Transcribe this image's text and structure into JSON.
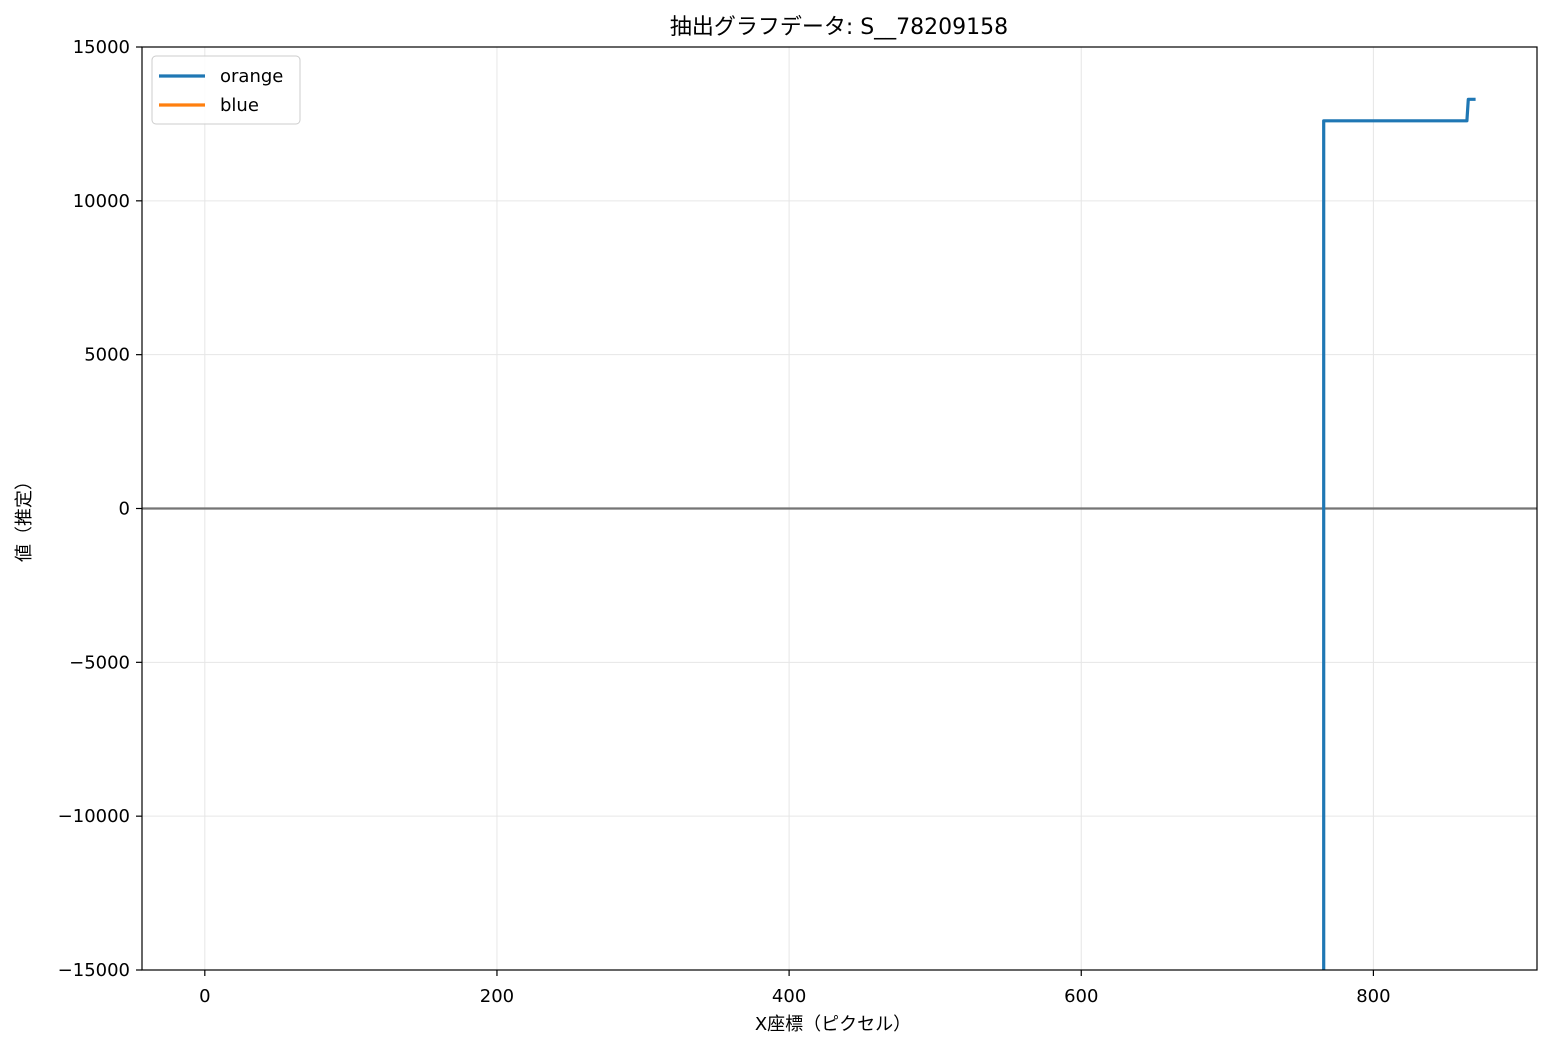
{
  "chart_data": {
    "type": "line",
    "title": "抽出グラフデータ: S__78209158",
    "xlabel": "X座標（ピクセル）",
    "ylabel": "値（推定）",
    "xlim": [
      -43,
      912
    ],
    "ylim": [
      -15000,
      15000
    ],
    "x_ticks": [
      0,
      200,
      400,
      600,
      800
    ],
    "y_ticks": [
      -15000,
      -10000,
      -5000,
      0,
      5000,
      10000,
      15000
    ],
    "x_tick_labels": [
      "0",
      "200",
      "400",
      "600",
      "800"
    ],
    "y_tick_labels": [
      "−15000",
      "−10000",
      "−5000",
      "0",
      "5000",
      "10000",
      "15000"
    ],
    "grid": true,
    "zero_line": true,
    "legend_position": "top-left",
    "series": [
      {
        "name": "orange",
        "color": "#1f77b4",
        "points": [
          [
            766,
            -15000
          ],
          [
            766,
            12600
          ],
          [
            864,
            12600
          ],
          [
            865,
            13300
          ],
          [
            870,
            13300
          ]
        ]
      },
      {
        "name": "blue",
        "color": "#ff7f0e",
        "points": []
      }
    ]
  }
}
